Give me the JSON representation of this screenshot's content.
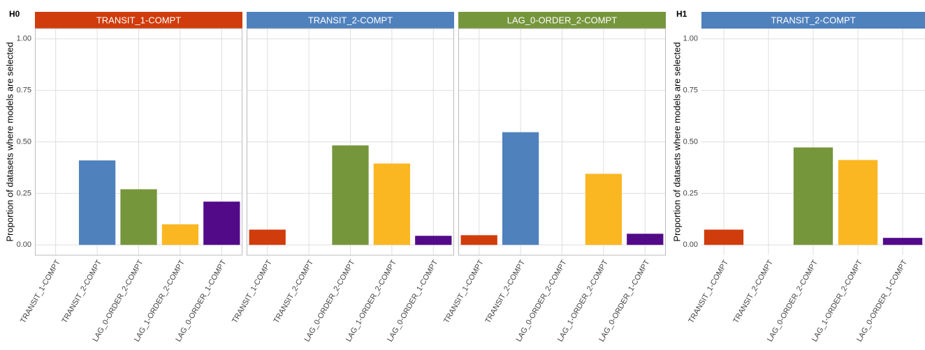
{
  "chart_data": [
    {
      "type": "bar",
      "title": "H0",
      "y_label": "Proportion of datasets where models are selected",
      "categories": [
        "TRANSIT_1-COMPT",
        "TRANSIT_2-COMPT",
        "LAG_0-ORDER_2-COMPT",
        "LAG_1-ORDER_2-COMPT",
        "LAG_0-ORDER_1-COMPT"
      ],
      "colors": [
        "#d03c0c",
        "#4f81bd",
        "#76963c",
        "#fbb722",
        "#520a89"
      ],
      "ylim": [
        -0.05,
        1.05
      ],
      "yticks": [
        {
          "value": 0,
          "label": "0.00"
        },
        {
          "value": 0.25,
          "label": "0.25"
        },
        {
          "value": 0.5,
          "label": "0.50"
        },
        {
          "value": 0.75,
          "label": "0.75"
        },
        {
          "value": 1,
          "label": "1.00"
        }
      ],
      "grid": true,
      "facets": [
        {
          "title": "TRANSIT_1-COMPT",
          "color": "#d03c0c",
          "values": [
            0,
            0.41,
            0.27,
            0.1,
            0.21
          ]
        },
        {
          "title": "TRANSIT_2-COMPT",
          "color": "#4f81bd",
          "values": [
            0.074,
            0,
            0.483,
            0.395,
            0.044
          ]
        },
        {
          "title": "LAG_0-ORDER_2-COMPT",
          "color": "#76963c",
          "values": [
            0.047,
            0.547,
            0,
            0.345,
            0.054
          ]
        }
      ]
    },
    {
      "type": "bar",
      "title": "H1",
      "y_label": "Proportion of datasets where models are selected",
      "categories": [
        "TRANSIT_1-COMPT",
        "TRANSIT_2-COMPT",
        "LAG_0-ORDER_2-COMPT",
        "LAG_1-ORDER_2-COMPT",
        "LAG_0-ORDER_1-COMPT"
      ],
      "colors": [
        "#d03c0c",
        "#4f81bd",
        "#76963c",
        "#fbb722",
        "#520a89"
      ],
      "ylim": [
        -0.05,
        1.05
      ],
      "yticks": [
        {
          "value": 0,
          "label": "0.00"
        },
        {
          "value": 0.25,
          "label": "0.25"
        },
        {
          "value": 0.5,
          "label": "0.50"
        },
        {
          "value": 0.75,
          "label": "0.75"
        },
        {
          "value": 1,
          "label": "1.00"
        }
      ],
      "grid": true,
      "facets": [
        {
          "title": "TRANSIT_2-COMPT",
          "color": "#4f81bd",
          "values": [
            0.074,
            0,
            0.473,
            0.412,
            0.034
          ]
        }
      ]
    }
  ]
}
